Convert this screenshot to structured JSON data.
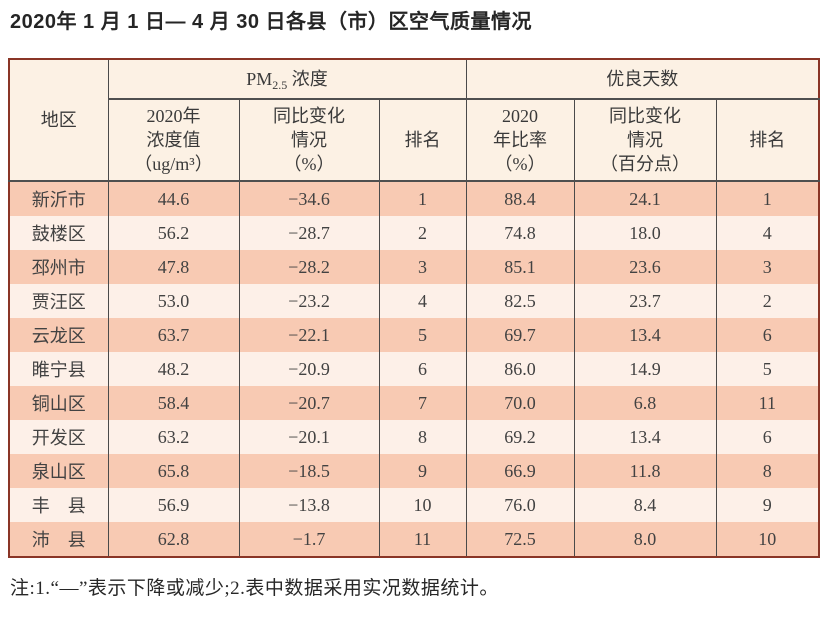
{
  "page": {
    "title": "2020年 1 月 1 日— 4 月 30 日各县（市）区空气质量情况",
    "footnote": "注:1.“—”表示下降或减少;2.表中数据采用实况数据统计。"
  },
  "colors": {
    "outer_border": "#8a3526",
    "inner_border": "#4a4a4a",
    "row_salmon": "#f8cab3",
    "row_light": "#fdf0e8",
    "header_bg": "#fcf1e4",
    "text": "#3e3e3e"
  },
  "table": {
    "header": {
      "region": "地区",
      "pm25_group": {
        "pm": "PM",
        "sub": "2.5",
        "suffix": " 浓度"
      },
      "good_days_group": "优良天数",
      "pm25_cols": {
        "value": "2020年\n浓度值\n（ug/m³）",
        "change": "同比变化\n情况\n（%）",
        "rank": "排名"
      },
      "good_cols": {
        "rate": "2020\n年比率\n（%）",
        "change": "同比变化\n情况\n（百分点）",
        "rank": "排名"
      }
    },
    "row_keys": [
      "region",
      "pm_value",
      "pm_change",
      "pm_rank",
      "good_rate",
      "good_change",
      "good_rank"
    ],
    "rows": [
      {
        "region": "新沂市",
        "pm_value": "44.6",
        "pm_change": "−34.6",
        "pm_rank": "1",
        "good_rate": "88.4",
        "good_change": "24.1",
        "good_rank": "1"
      },
      {
        "region": "鼓楼区",
        "pm_value": "56.2",
        "pm_change": "−28.7",
        "pm_rank": "2",
        "good_rate": "74.8",
        "good_change": "18.0",
        "good_rank": "4"
      },
      {
        "region": "邳州市",
        "pm_value": "47.8",
        "pm_change": "−28.2",
        "pm_rank": "3",
        "good_rate": "85.1",
        "good_change": "23.6",
        "good_rank": "3"
      },
      {
        "region": "贾汪区",
        "pm_value": "53.0",
        "pm_change": "−23.2",
        "pm_rank": "4",
        "good_rate": "82.5",
        "good_change": "23.7",
        "good_rank": "2"
      },
      {
        "region": "云龙区",
        "pm_value": "63.7",
        "pm_change": "−22.1",
        "pm_rank": "5",
        "good_rate": "69.7",
        "good_change": "13.4",
        "good_rank": "6"
      },
      {
        "region": "睢宁县",
        "pm_value": "48.2",
        "pm_change": "−20.9",
        "pm_rank": "6",
        "good_rate": "86.0",
        "good_change": "14.9",
        "good_rank": "5"
      },
      {
        "region": "铜山区",
        "pm_value": "58.4",
        "pm_change": "−20.7",
        "pm_rank": "7",
        "good_rate": "70.0",
        "good_change": "6.8",
        "good_rank": "11"
      },
      {
        "region": "开发区",
        "pm_value": "63.2",
        "pm_change": "−20.1",
        "pm_rank": "8",
        "good_rate": "69.2",
        "good_change": "13.4",
        "good_rank": "6"
      },
      {
        "region": "泉山区",
        "pm_value": "65.8",
        "pm_change": "−18.5",
        "pm_rank": "9",
        "good_rate": "66.9",
        "good_change": "11.8",
        "good_rank": "8"
      },
      {
        "region": "丰　县",
        "pm_value": "56.9",
        "pm_change": "−13.8",
        "pm_rank": "10",
        "good_rate": "76.0",
        "good_change": "8.4",
        "good_rank": "9"
      },
      {
        "region": "沛　县",
        "pm_value": "62.8",
        "pm_change": "−1.7",
        "pm_rank": "11",
        "good_rate": "72.5",
        "good_change": "8.0",
        "good_rank": "10"
      }
    ]
  }
}
